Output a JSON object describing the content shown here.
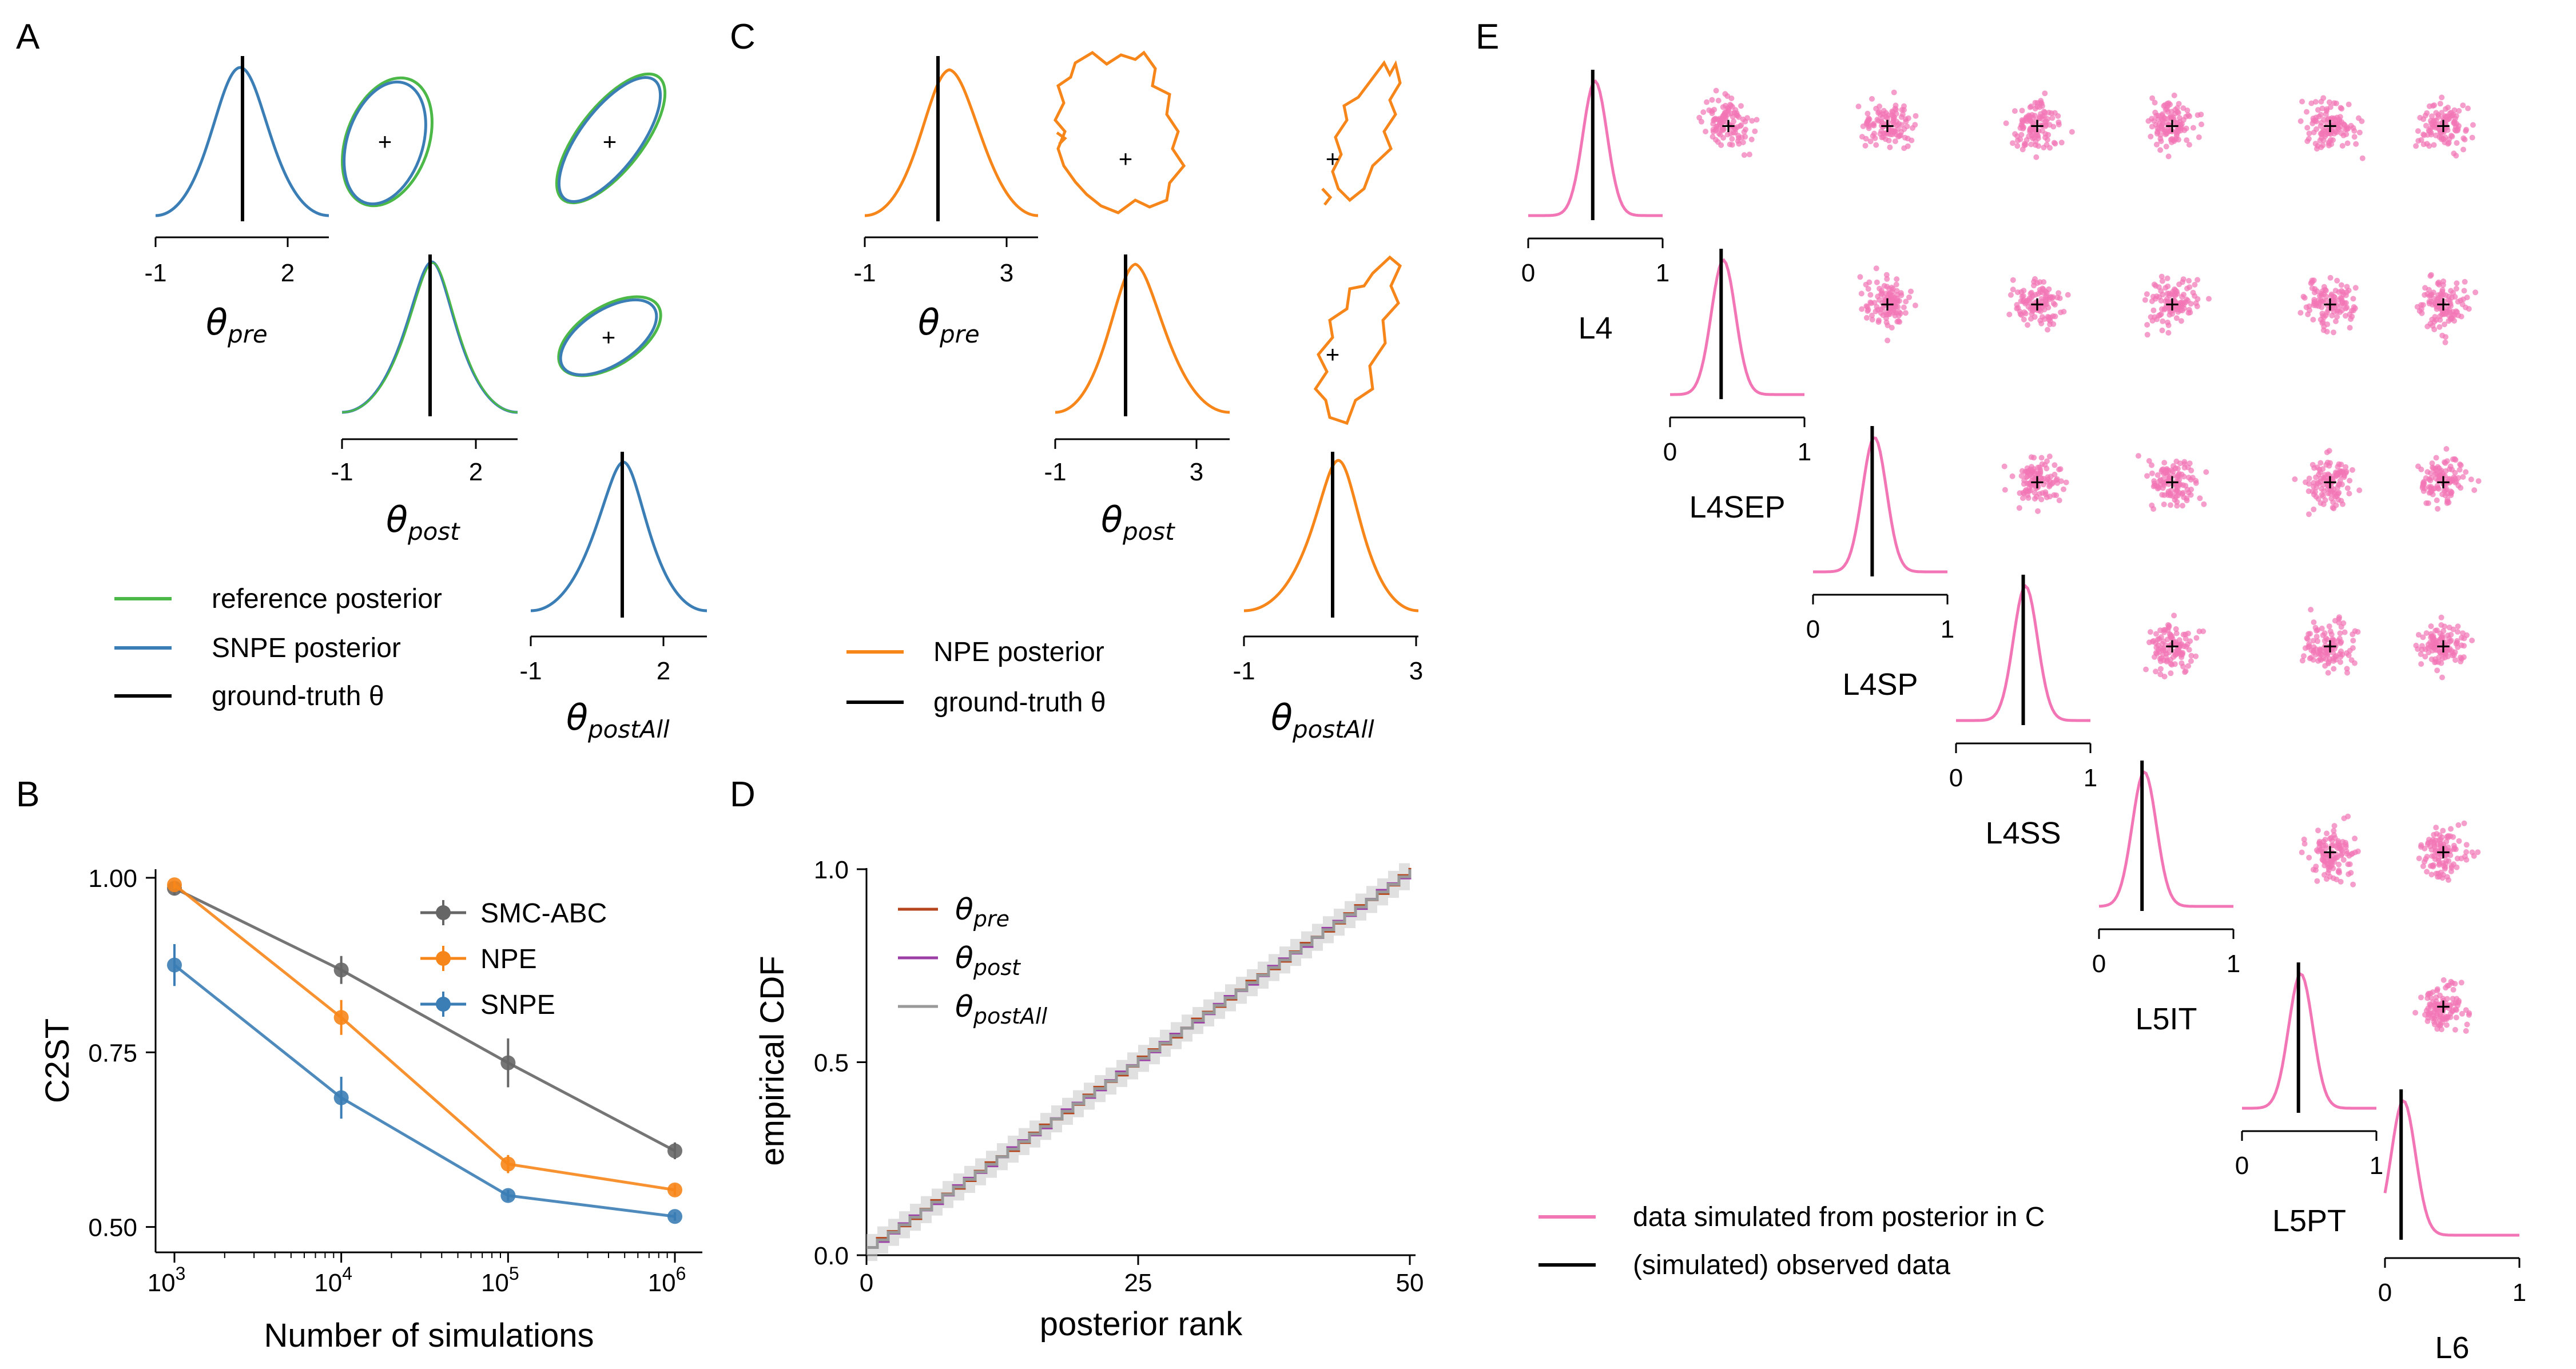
{
  "colors": {
    "reference": "#4cb848",
    "snpe": "#3b7db5",
    "npe": "#f7861a",
    "smc": "#666666",
    "pink": "#f275b5",
    "rank_pre": "#b5451c",
    "rank_post": "#9b3fa6",
    "rank_postall": "#999999",
    "truth": "#000000"
  },
  "panels": {
    "A": {
      "letter": "A",
      "axis_labels": [
        "θ",
        "θ",
        "θ"
      ],
      "axis_subs": [
        "pre",
        "post",
        "postAll"
      ],
      "ticks": [
        "-1",
        "2"
      ],
      "legend": [
        "reference posterior",
        "SNPE posterior",
        "ground-truth θ"
      ]
    },
    "B": {
      "letter": "B"
    },
    "C": {
      "letter": "C",
      "axis_labels": [
        "θ",
        "θ",
        "θ"
      ],
      "axis_subs": [
        "pre",
        "post",
        "postAll"
      ],
      "ticks": [
        "-1",
        "3"
      ],
      "legend": [
        "NPE posterior",
        "ground-truth θ"
      ]
    },
    "D": {
      "letter": "D"
    },
    "E": {
      "letter": "E",
      "features": [
        "L4",
        "L4SEP",
        "L4SP",
        "L4SS",
        "L5IT",
        "L5PT",
        "L6"
      ],
      "ticks": [
        "0",
        "1"
      ],
      "legend": [
        "data simulated from posterior in C",
        "(simulated) observed data"
      ],
      "observed": [
        0.48,
        0.38,
        0.44,
        0.5,
        0.32,
        0.42,
        0.12
      ]
    }
  },
  "chart_data": [
    {
      "type": "line",
      "panel": "B",
      "xlabel": "Number of simulations",
      "ylabel": "C2ST",
      "xscale": "log",
      "x": [
        1000,
        10000,
        100000,
        1000000
      ],
      "x_ticks": [
        {
          "b": "10",
          "e": "3"
        },
        {
          "b": "10",
          "e": "4"
        },
        {
          "b": "10",
          "e": "5"
        },
        {
          "b": "10",
          "e": "6"
        }
      ],
      "ylim": [
        0.48,
        1.0
      ],
      "y_ticks": [
        "0.50",
        "0.75",
        "1.00"
      ],
      "legend_position": "top-right",
      "series": [
        {
          "name": "SMC-ABC",
          "values": [
            0.985,
            0.868,
            0.735,
            0.609
          ],
          "err": [
            0.01,
            0.02,
            0.035,
            0.012
          ]
        },
        {
          "name": "NPE",
          "values": [
            0.99,
            0.8,
            0.59,
            0.553
          ],
          "err": [
            0.006,
            0.025,
            0.013,
            0.008
          ]
        },
        {
          "name": "SNPE",
          "values": [
            0.875,
            0.685,
            0.545,
            0.515
          ],
          "err": [
            0.03,
            0.03,
            0.008,
            0.006
          ]
        }
      ]
    },
    {
      "type": "line",
      "panel": "D",
      "xlabel": "posterior rank",
      "ylabel": "empirical CDF",
      "xlim": [
        0,
        50
      ],
      "ylim": [
        0,
        1.0
      ],
      "x_ticks": [
        "0",
        "25",
        "50"
      ],
      "y_ticks": [
        "0.0",
        "0.5",
        "1.0"
      ],
      "legend_position": "top-left",
      "legend_subs": [
        "pre",
        "post",
        "postAll"
      ],
      "series": [
        {
          "name": "θ_pre",
          "x": [
            0,
            50
          ],
          "values": [
            0.02,
            1.0
          ]
        },
        {
          "name": "θ_post",
          "x": [
            0,
            50
          ],
          "values": [
            0.02,
            1.0
          ]
        },
        {
          "name": "θ_postAll",
          "x": [
            0,
            50
          ],
          "values": [
            0.02,
            1.0
          ]
        }
      ]
    }
  ]
}
